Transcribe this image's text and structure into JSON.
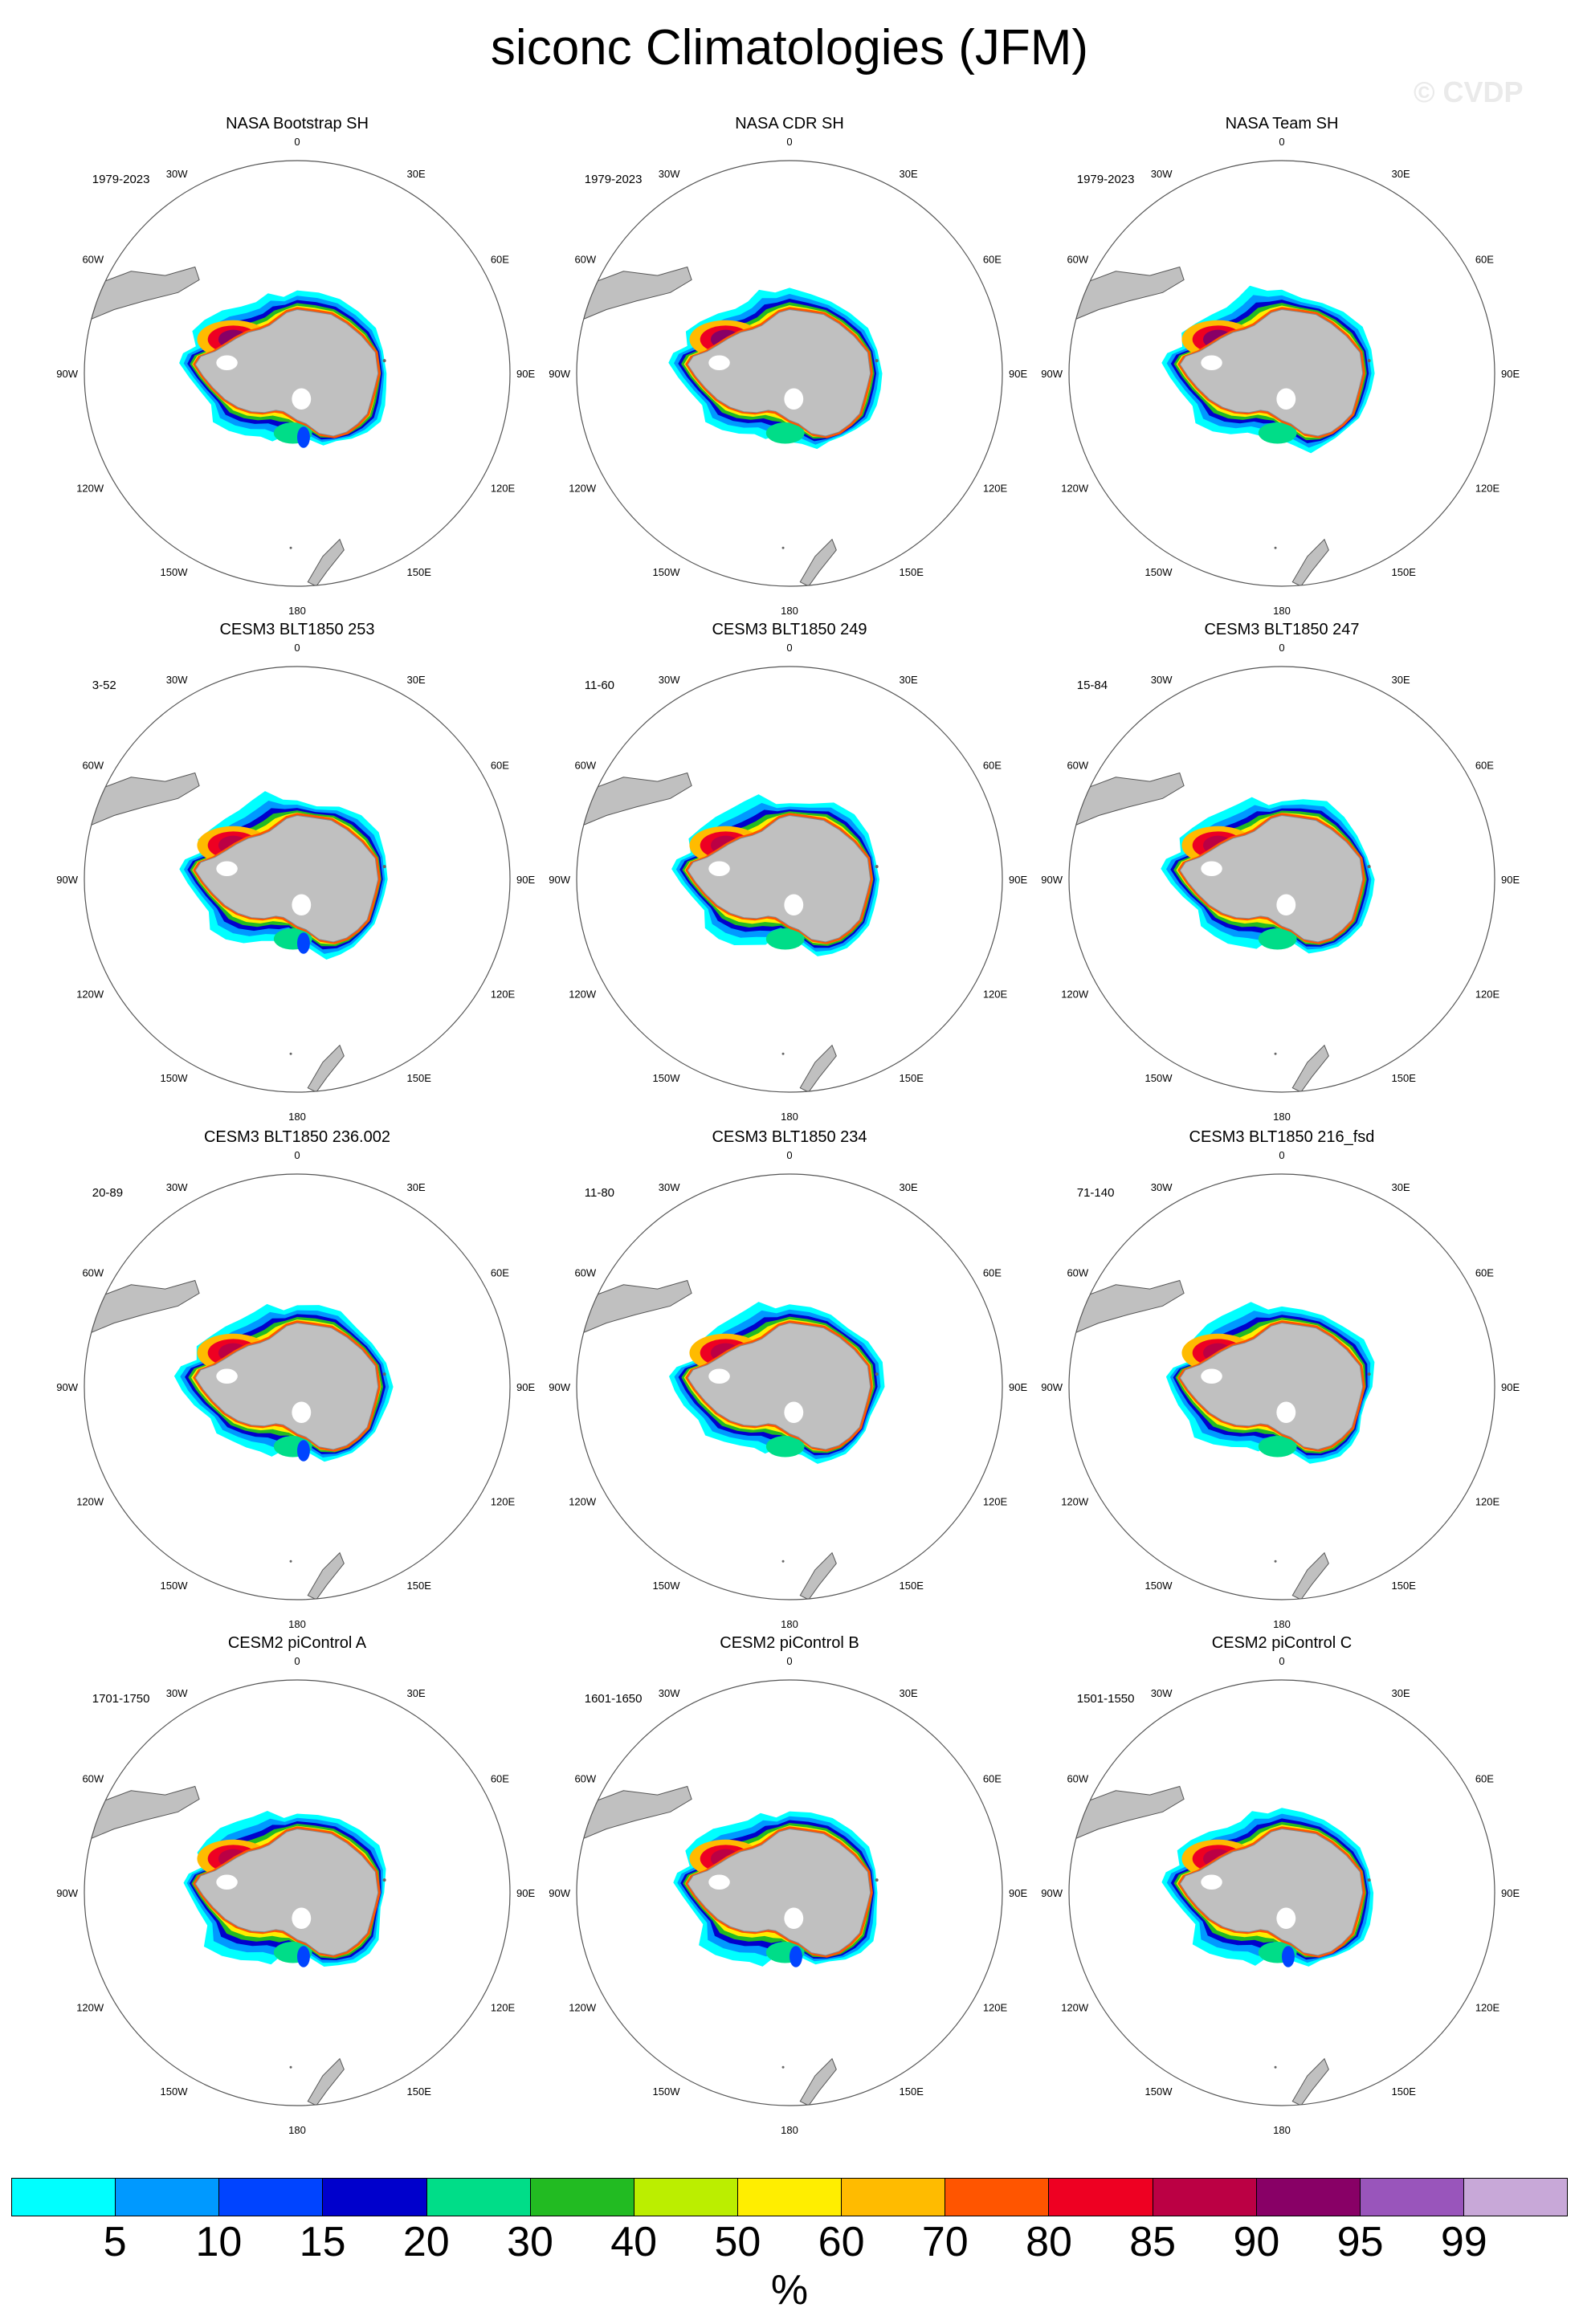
{
  "title": "siconc Climatologies (JFM)",
  "watermark": "© CVDP",
  "longitude_labels": [
    "0",
    "30E",
    "60E",
    "90E",
    "120E",
    "150E",
    "180",
    "150W",
    "120W",
    "90W",
    "60W",
    "30W"
  ],
  "panels": [
    {
      "title": "NASA Bootstrap SH",
      "period": "1979-2023"
    },
    {
      "title": "NASA CDR SH",
      "period": "1979-2023"
    },
    {
      "title": "NASA Team SH",
      "period": "1979-2023"
    },
    {
      "title": "CESM3 BLT1850 253",
      "period": "3-52"
    },
    {
      "title": "CESM3 BLT1850 249",
      "period": "11-60"
    },
    {
      "title": "CESM3 BLT1850 247",
      "period": "15-84"
    },
    {
      "title": "CESM3 BLT1850 236.002",
      "period": "20-89"
    },
    {
      "title": "CESM3 BLT1850 234",
      "period": "11-80"
    },
    {
      "title": "CESM3 BLT1850 216_fsd",
      "period": "71-140"
    },
    {
      "title": "CESM2 piControl A",
      "period": "1701-1750"
    },
    {
      "title": "CESM2 piControl B",
      "period": "1601-1650"
    },
    {
      "title": "CESM2 piControl C",
      "period": "1501-1550"
    }
  ],
  "colorbar": {
    "unit": "%",
    "levels": [
      "5",
      "10",
      "15",
      "20",
      "30",
      "40",
      "50",
      "60",
      "70",
      "80",
      "85",
      "90",
      "95",
      "99"
    ],
    "colors": [
      "#00ffff",
      "#0099ff",
      "#0044ff",
      "#0000cc",
      "#00dd88",
      "#22bb22",
      "#bbee00",
      "#ffee00",
      "#ffbb00",
      "#ff5500",
      "#ee0022",
      "#bb0044",
      "#880066",
      "#9955bb",
      "#c8a8d8"
    ]
  },
  "colors": {
    "land": "#c0c0c0",
    "ocean": "#ffffff",
    "outline": "#000000"
  }
}
